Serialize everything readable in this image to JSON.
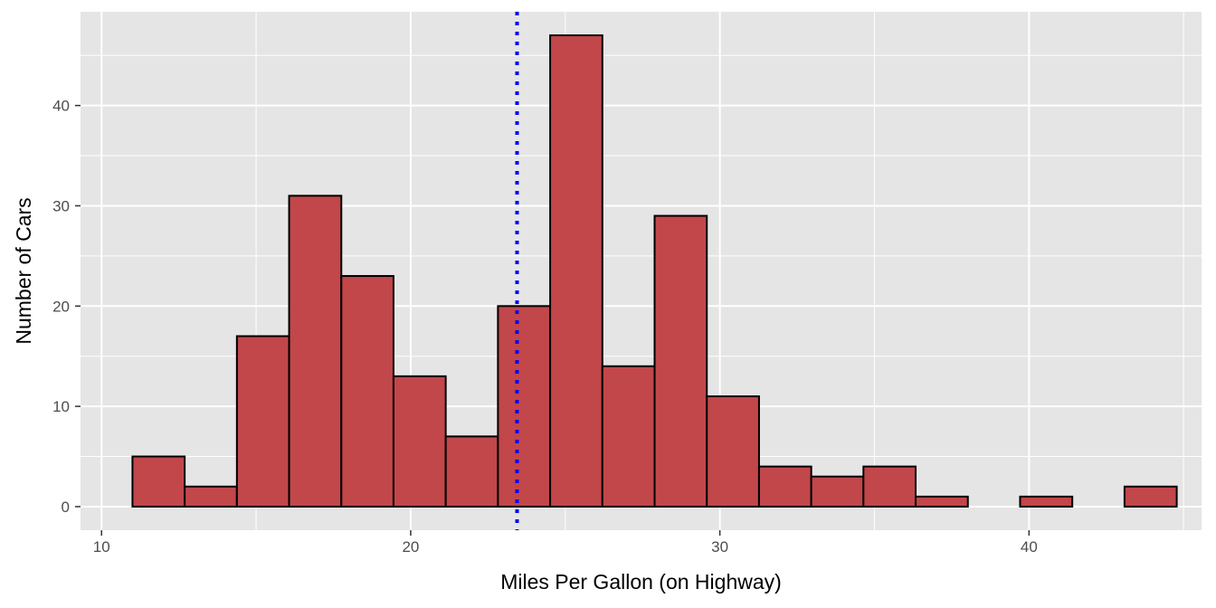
{
  "chart_data": {
    "type": "bar",
    "xlabel": "Miles Per Gallon (on Highway)",
    "ylabel": "Number of Cars",
    "xlim": [
      9.32,
      45.58
    ],
    "ylim": [
      -2.35,
      49.35
    ],
    "x_ticks": [
      10,
      20,
      30,
      40
    ],
    "y_ticks": [
      0,
      10,
      20,
      30,
      40
    ],
    "grid": true,
    "bin_width": 1.689,
    "bins": [
      {
        "x0": 11.0,
        "x1": 12.689,
        "count": 5
      },
      {
        "x0": 12.689,
        "x1": 14.378,
        "count": 2
      },
      {
        "x0": 14.378,
        "x1": 16.067,
        "count": 17
      },
      {
        "x0": 16.067,
        "x1": 17.756,
        "count": 31
      },
      {
        "x0": 17.756,
        "x1": 19.444,
        "count": 23
      },
      {
        "x0": 19.444,
        "x1": 21.133,
        "count": 13
      },
      {
        "x0": 21.133,
        "x1": 22.822,
        "count": 7
      },
      {
        "x0": 22.822,
        "x1": 24.511,
        "count": 20
      },
      {
        "x0": 24.511,
        "x1": 26.2,
        "count": 47
      },
      {
        "x0": 26.2,
        "x1": 27.889,
        "count": 14
      },
      {
        "x0": 27.889,
        "x1": 29.578,
        "count": 29
      },
      {
        "x0": 29.578,
        "x1": 31.267,
        "count": 11
      },
      {
        "x0": 31.267,
        "x1": 32.956,
        "count": 4
      },
      {
        "x0": 32.956,
        "x1": 34.644,
        "count": 3
      },
      {
        "x0": 34.644,
        "x1": 36.333,
        "count": 4
      },
      {
        "x0": 36.333,
        "x1": 38.022,
        "count": 1
      },
      {
        "x0": 38.022,
        "x1": 39.711,
        "count": 0
      },
      {
        "x0": 39.711,
        "x1": 41.4,
        "count": 1
      },
      {
        "x0": 41.4,
        "x1": 43.089,
        "count": 0
      },
      {
        "x0": 43.089,
        "x1": 44.778,
        "count": 2
      }
    ],
    "reference_line": {
      "x": 23.44,
      "color": "#0000ff",
      "style": "dotted"
    },
    "colors": {
      "bar_fill": "#c1474a",
      "bar_stroke": "#000000",
      "panel_background": "#e5e5e5",
      "grid": "#ffffff"
    }
  }
}
